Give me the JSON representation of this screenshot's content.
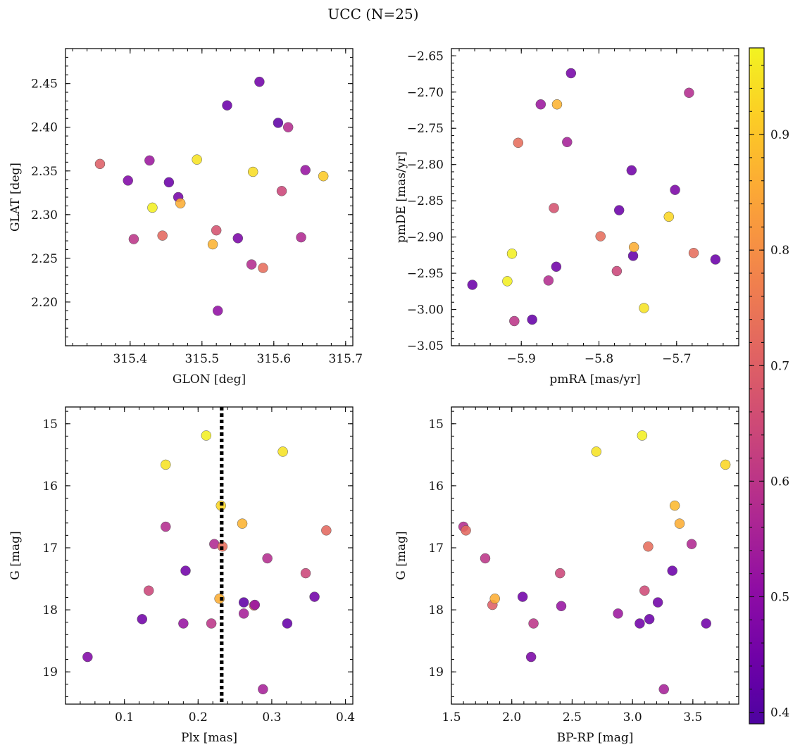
{
  "figure": {
    "title": "UCC (N=25)",
    "colormap": "plasma",
    "colorbar": {
      "min": 0.39,
      "max": 0.975,
      "ticks": [
        0.4,
        0.5,
        0.6,
        0.7,
        0.8,
        0.9
      ]
    },
    "marker_edge_color": "#555555",
    "vline_color": "#000000"
  },
  "chart_data": [
    {
      "type": "scatter",
      "xlabel": "GLON [deg]",
      "ylabel": "GLAT [deg]",
      "xlim": [
        315.31,
        315.71
      ],
      "ylim": [
        2.15,
        2.49
      ],
      "xticks": [
        315.4,
        315.5,
        315.6,
        315.7
      ],
      "yticks": [
        2.2,
        2.25,
        2.3,
        2.35,
        2.4,
        2.45
      ],
      "xtick_decimals": 1,
      "ytick_decimals": 2,
      "invert_y": false,
      "points": [
        {
          "x": 315.358,
          "y": 2.358,
          "c": 0.7
        },
        {
          "x": 315.397,
          "y": 2.339,
          "c": 0.48
        },
        {
          "x": 315.405,
          "y": 2.272,
          "c": 0.6
        },
        {
          "x": 315.427,
          "y": 2.362,
          "c": 0.53
        },
        {
          "x": 315.431,
          "y": 2.308,
          "c": 0.97
        },
        {
          "x": 315.445,
          "y": 2.276,
          "c": 0.72
        },
        {
          "x": 315.454,
          "y": 2.337,
          "c": 0.44
        },
        {
          "x": 315.467,
          "y": 2.32,
          "c": 0.46
        },
        {
          "x": 315.47,
          "y": 2.313,
          "c": 0.86
        },
        {
          "x": 315.493,
          "y": 2.363,
          "c": 0.95
        },
        {
          "x": 315.515,
          "y": 2.266,
          "c": 0.87
        },
        {
          "x": 315.52,
          "y": 2.282,
          "c": 0.67
        },
        {
          "x": 315.522,
          "y": 2.19,
          "c": 0.51
        },
        {
          "x": 315.535,
          "y": 2.425,
          "c": 0.44
        },
        {
          "x": 315.55,
          "y": 2.273,
          "c": 0.47
        },
        {
          "x": 315.569,
          "y": 2.243,
          "c": 0.58
        },
        {
          "x": 315.571,
          "y": 2.349,
          "c": 0.94
        },
        {
          "x": 315.58,
          "y": 2.452,
          "c": 0.45
        },
        {
          "x": 315.585,
          "y": 2.239,
          "c": 0.73
        },
        {
          "x": 315.606,
          "y": 2.405,
          "c": 0.42
        },
        {
          "x": 315.611,
          "y": 2.327,
          "c": 0.64
        },
        {
          "x": 315.62,
          "y": 2.4,
          "c": 0.58
        },
        {
          "x": 315.638,
          "y": 2.274,
          "c": 0.57
        },
        {
          "x": 315.644,
          "y": 2.351,
          "c": 0.52
        },
        {
          "x": 315.669,
          "y": 2.344,
          "c": 0.91
        }
      ]
    },
    {
      "type": "scatter",
      "xlabel": "pmRA [mas/yr]",
      "ylabel": "pmDE [mas/yr]",
      "xlim": [
        -5.99,
        -5.62
      ],
      "ylim": [
        -3.05,
        -2.64
      ],
      "xticks": [
        -5.9,
        -5.8,
        -5.7
      ],
      "yticks": [
        -3.05,
        -3.0,
        -2.95,
        -2.9,
        -2.85,
        -2.8,
        -2.75,
        -2.7,
        -2.65
      ],
      "xtick_decimals": 1,
      "ytick_decimals": 2,
      "invert_y": false,
      "points": [
        {
          "x": -5.963,
          "y": -2.966,
          "c": 0.44
        },
        {
          "x": -5.918,
          "y": -2.961,
          "c": 0.97
        },
        {
          "x": -5.912,
          "y": -2.923,
          "c": 0.97
        },
        {
          "x": -5.909,
          "y": -3.016,
          "c": 0.6
        },
        {
          "x": -5.904,
          "y": -2.77,
          "c": 0.73
        },
        {
          "x": -5.886,
          "y": -3.014,
          "c": 0.43
        },
        {
          "x": -5.875,
          "y": -2.717,
          "c": 0.53
        },
        {
          "x": -5.865,
          "y": -2.96,
          "c": 0.58
        },
        {
          "x": -5.858,
          "y": -2.86,
          "c": 0.67
        },
        {
          "x": -5.855,
          "y": -2.941,
          "c": 0.45
        },
        {
          "x": -5.854,
          "y": -2.717,
          "c": 0.87
        },
        {
          "x": -5.841,
          "y": -2.769,
          "c": 0.55
        },
        {
          "x": -5.836,
          "y": -2.674,
          "c": 0.46
        },
        {
          "x": -5.798,
          "y": -2.899,
          "c": 0.73
        },
        {
          "x": -5.777,
          "y": -2.947,
          "c": 0.64
        },
        {
          "x": -5.774,
          "y": -2.863,
          "c": 0.44
        },
        {
          "x": -5.758,
          "y": -2.808,
          "c": 0.45
        },
        {
          "x": -5.756,
          "y": -2.926,
          "c": 0.43
        },
        {
          "x": -5.755,
          "y": -2.914,
          "c": 0.86
        },
        {
          "x": -5.742,
          "y": -2.998,
          "c": 0.95
        },
        {
          "x": -5.71,
          "y": -2.872,
          "c": 0.93
        },
        {
          "x": -5.702,
          "y": -2.835,
          "c": 0.47
        },
        {
          "x": -5.684,
          "y": -2.701,
          "c": 0.58
        },
        {
          "x": -5.678,
          "y": -2.922,
          "c": 0.73
        },
        {
          "x": -5.65,
          "y": -2.931,
          "c": 0.44
        }
      ]
    },
    {
      "type": "scatter",
      "xlabel": "Plx [mas]",
      "ylabel": "G [mag]",
      "xlim": [
        0.02,
        0.41
      ],
      "ylim": [
        14.73,
        19.52
      ],
      "xticks": [
        0.1,
        0.2,
        0.3,
        0.4
      ],
      "yticks": [
        15,
        16,
        17,
        18,
        19
      ],
      "xtick_decimals": 1,
      "ytick_decimals": 0,
      "invert_y": true,
      "vline": {
        "x": 0.232,
        "style": "dotted"
      },
      "points": [
        {
          "x": 0.05,
          "y": 18.76,
          "c": 0.48
        },
        {
          "x": 0.124,
          "y": 18.15,
          "c": 0.45
        },
        {
          "x": 0.133,
          "y": 17.69,
          "c": 0.64
        },
        {
          "x": 0.156,
          "y": 15.66,
          "c": 0.95
        },
        {
          "x": 0.156,
          "y": 16.66,
          "c": 0.58
        },
        {
          "x": 0.18,
          "y": 18.22,
          "c": 0.52
        },
        {
          "x": 0.183,
          "y": 17.37,
          "c": 0.45
        },
        {
          "x": 0.211,
          "y": 15.19,
          "c": 0.97
        },
        {
          "x": 0.218,
          "y": 18.22,
          "c": 0.6
        },
        {
          "x": 0.222,
          "y": 16.94,
          "c": 0.57
        },
        {
          "x": 0.229,
          "y": 17.82,
          "c": 0.86
        },
        {
          "x": 0.231,
          "y": 16.32,
          "c": 0.93
        },
        {
          "x": 0.233,
          "y": 16.98,
          "c": 0.73
        },
        {
          "x": 0.26,
          "y": 16.61,
          "c": 0.87
        },
        {
          "x": 0.262,
          "y": 17.88,
          "c": 0.42
        },
        {
          "x": 0.262,
          "y": 18.06,
          "c": 0.55
        },
        {
          "x": 0.276,
          "y": 17.93,
          "c": 0.73
        },
        {
          "x": 0.277,
          "y": 17.92,
          "c": 0.52
        },
        {
          "x": 0.288,
          "y": 19.28,
          "c": 0.55
        },
        {
          "x": 0.294,
          "y": 17.17,
          "c": 0.58
        },
        {
          "x": 0.315,
          "y": 15.45,
          "c": 0.95
        },
        {
          "x": 0.321,
          "y": 18.22,
          "c": 0.43
        },
        {
          "x": 0.346,
          "y": 17.41,
          "c": 0.64
        },
        {
          "x": 0.358,
          "y": 17.79,
          "c": 0.45
        },
        {
          "x": 0.374,
          "y": 16.72,
          "c": 0.72
        }
      ]
    },
    {
      "type": "scatter",
      "xlabel": "BP-RP [mag]",
      "ylabel": "G [mag]",
      "xlim": [
        1.5,
        3.88
      ],
      "ylim": [
        14.73,
        19.52
      ],
      "xticks": [
        1.5,
        2.0,
        2.5,
        3.0,
        3.5
      ],
      "yticks": [
        15,
        16,
        17,
        18,
        19
      ],
      "xtick_decimals": 1,
      "ytick_decimals": 0,
      "invert_y": true,
      "points": [
        {
          "x": 1.6,
          "y": 16.66,
          "c": 0.58
        },
        {
          "x": 1.62,
          "y": 16.72,
          "c": 0.72
        },
        {
          "x": 1.78,
          "y": 17.17,
          "c": 0.6
        },
        {
          "x": 1.84,
          "y": 17.92,
          "c": 0.7
        },
        {
          "x": 1.86,
          "y": 17.82,
          "c": 0.86
        },
        {
          "x": 2.09,
          "y": 17.79,
          "c": 0.45
        },
        {
          "x": 2.16,
          "y": 18.76,
          "c": 0.47
        },
        {
          "x": 2.18,
          "y": 18.22,
          "c": 0.6
        },
        {
          "x": 2.4,
          "y": 17.41,
          "c": 0.64
        },
        {
          "x": 2.41,
          "y": 17.94,
          "c": 0.52
        },
        {
          "x": 2.7,
          "y": 15.45,
          "c": 0.95
        },
        {
          "x": 2.88,
          "y": 18.06,
          "c": 0.53
        },
        {
          "x": 3.06,
          "y": 18.22,
          "c": 0.45
        },
        {
          "x": 3.08,
          "y": 15.19,
          "c": 0.97
        },
        {
          "x": 3.1,
          "y": 17.69,
          "c": 0.65
        },
        {
          "x": 3.13,
          "y": 16.98,
          "c": 0.73
        },
        {
          "x": 3.14,
          "y": 18.15,
          "c": 0.44
        },
        {
          "x": 3.21,
          "y": 17.88,
          "c": 0.45
        },
        {
          "x": 3.26,
          "y": 19.28,
          "c": 0.55
        },
        {
          "x": 3.33,
          "y": 17.37,
          "c": 0.44
        },
        {
          "x": 3.35,
          "y": 16.32,
          "c": 0.88
        },
        {
          "x": 3.39,
          "y": 16.61,
          "c": 0.86
        },
        {
          "x": 3.49,
          "y": 16.94,
          "c": 0.57
        },
        {
          "x": 3.61,
          "y": 18.22,
          "c": 0.45
        },
        {
          "x": 3.77,
          "y": 15.66,
          "c": 0.93
        }
      ]
    }
  ]
}
